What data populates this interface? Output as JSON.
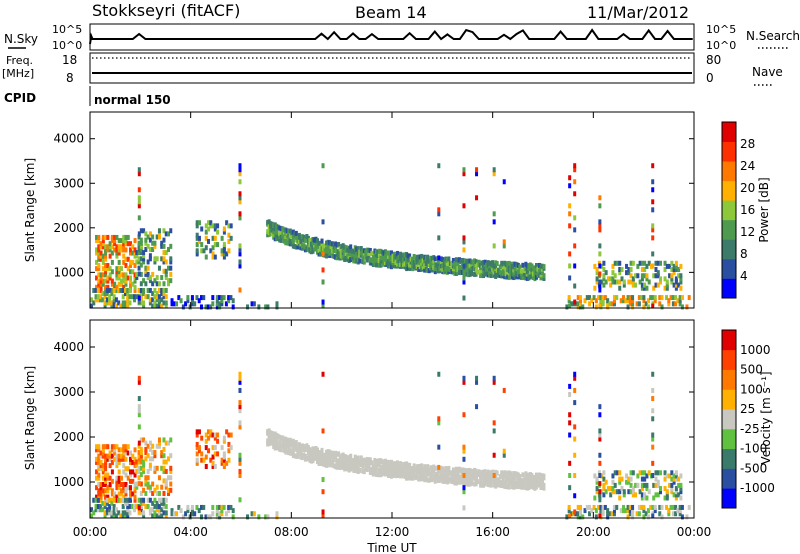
{
  "header": {
    "station": "Stokkseyri (fitACF)",
    "beam": "Beam 14",
    "date": "11/Mar/2012"
  },
  "status_panels": {
    "nsky": {
      "label": "N.Sky",
      "ticks": [
        "10^5",
        "10^0"
      ],
      "right_label": "N.Search",
      "right_ticks": [
        "10^5",
        "10^0"
      ]
    },
    "freq": {
      "label_top": "Freq.",
      "label_bottom": "[MHz]",
      "ticks": [
        "18",
        "8"
      ],
      "right_label": "Nave",
      "right_ticks": [
        "80",
        "0"
      ]
    },
    "cpid": {
      "label": "CPID",
      "value": "normal 150"
    }
  },
  "colors": {
    "power_scale": [
      "#0000ff",
      "#2a4fa0",
      "#3c7a6a",
      "#4e9a4e",
      "#8cc83a",
      "#ffb000",
      "#ff7800",
      "#ff3000",
      "#e00000"
    ],
    "velocity_scale": [
      "#0000ff",
      "#2a4fa0",
      "#3a7a6a",
      "#60c040",
      "#c8c8c0",
      "#ffb000",
      "#ff7800",
      "#ff4000",
      "#e00000"
    ]
  },
  "chart_data": [
    {
      "type": "heatmap",
      "name": "power",
      "xlabel": "",
      "ylabel": "Slant Range [km]",
      "yticks": [
        "1000",
        "2000",
        "3000",
        "4000"
      ],
      "ylim": [
        200,
        4600
      ],
      "xlim": [
        0,
        24
      ],
      "colorbar_label": "Power [dB]",
      "colorbar_ticks": [
        "4",
        "8",
        "12",
        "16",
        "20",
        "24",
        "28"
      ],
      "colorbar_range": [
        0,
        30
      ]
    },
    {
      "type": "heatmap",
      "name": "velocity",
      "xlabel": "Time UT",
      "ylabel": "Slant Range [km]",
      "yticks": [
        "1000",
        "2000",
        "3000",
        "4000"
      ],
      "ylim": [
        200,
        4600
      ],
      "xlim": [
        0,
        24
      ],
      "xticks": [
        "00:00",
        "04:00",
        "08:00",
        "12:00",
        "16:00",
        "20:00",
        "00:00"
      ],
      "colorbar_label": "Velocity [m s⁻¹]",
      "colorbar_ticks": [
        "1000",
        "500",
        "100",
        "25",
        "-25",
        "-100",
        "-500",
        "-1000"
      ]
    }
  ]
}
